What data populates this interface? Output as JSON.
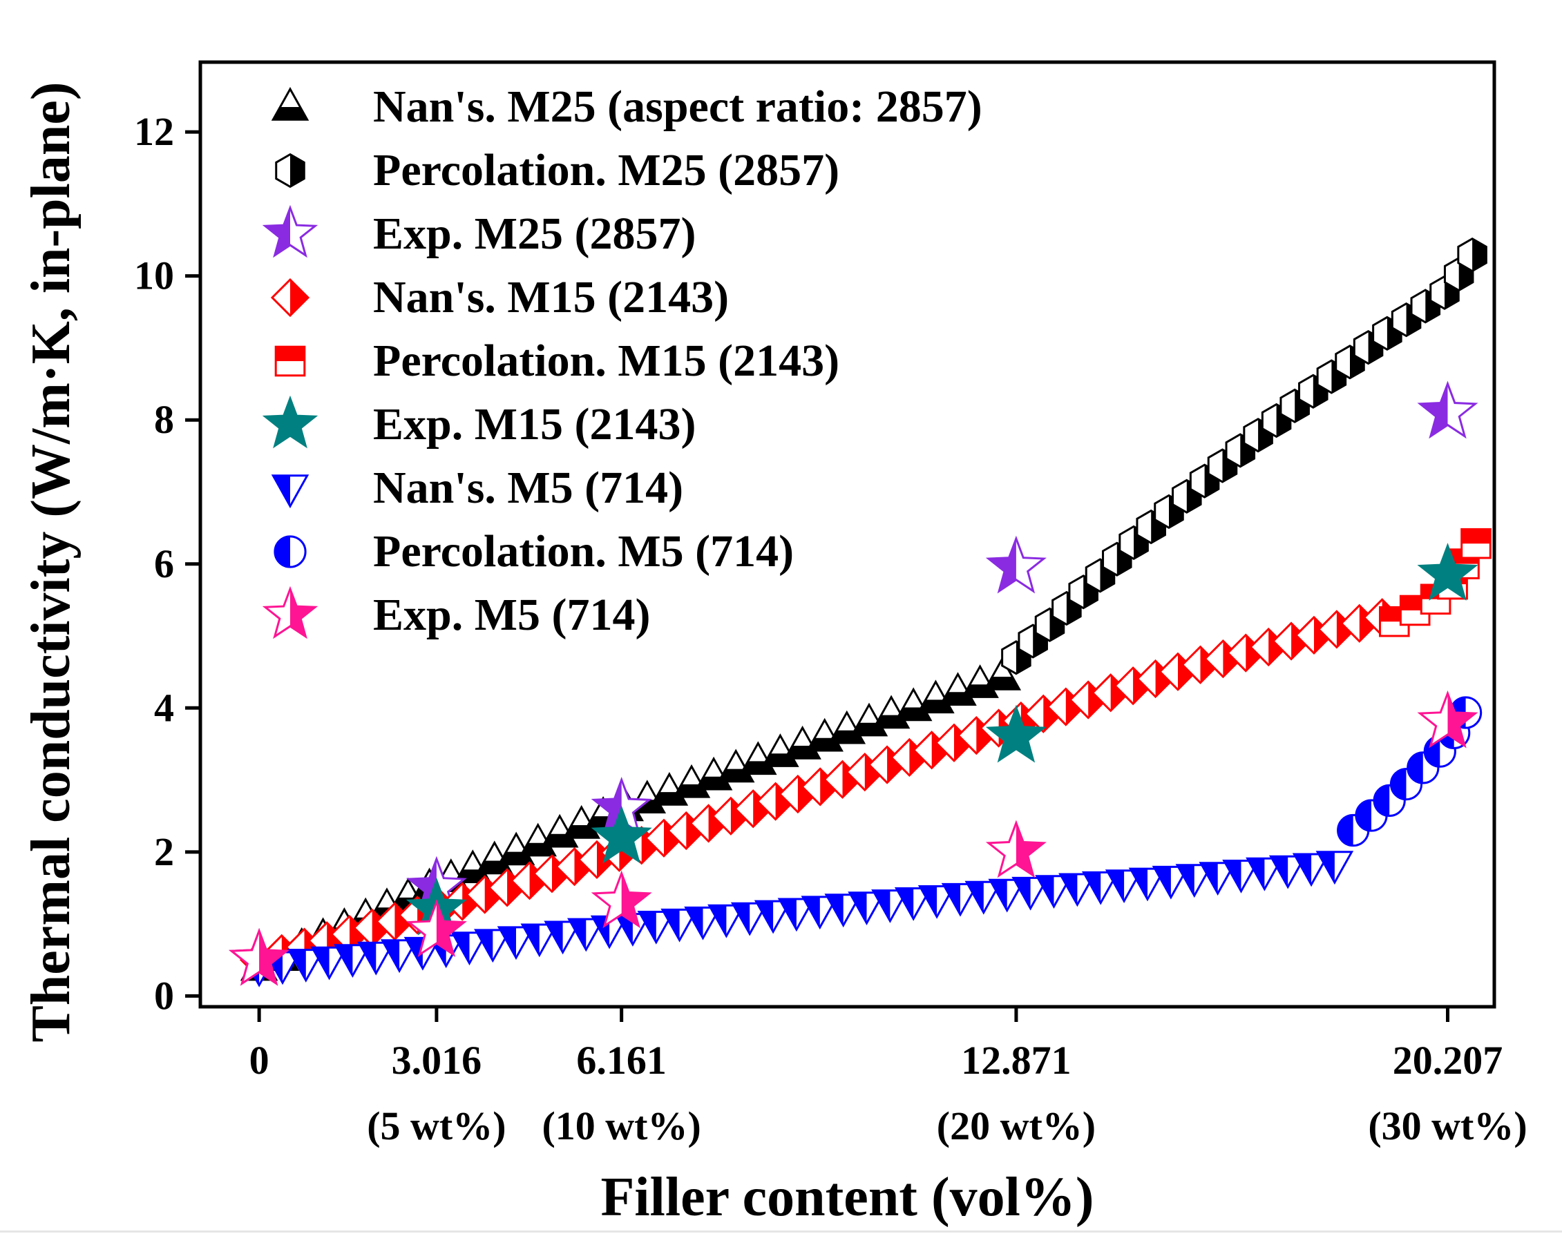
{
  "chart_data": {
    "type": "scatter",
    "xlabel": "Filler content (vol%)",
    "ylabel": "Thermal conductivity (W/m·K, in-plane)",
    "xlim": [
      -1.0,
      21.0
    ],
    "ylim": [
      -0.15,
      12.97
    ],
    "yticks": [
      "0",
      "2",
      "4",
      "6",
      "8",
      "10",
      "12"
    ],
    "xticks": [
      {
        "value": 0,
        "label": "0",
        "sublabel": ""
      },
      {
        "value": 3.016,
        "label": "3.016",
        "sublabel": "(5 wt%)"
      },
      {
        "value": 6.161,
        "label": "6.161",
        "sublabel": "(10 wt%)"
      },
      {
        "value": 12.871,
        "label": "12.871",
        "sublabel": "(20 wt%)"
      },
      {
        "value": 20.207,
        "label": "20.207",
        "sublabel": "(30 wt%)"
      }
    ],
    "grid": false,
    "legend_position": "top-left",
    "series": [
      {
        "name": "Nan's. M25 (aspect ratio: 2857)",
        "marker": "triangle-up",
        "color": "#000000",
        "fill": "bottom-half",
        "x": [
          0,
          3.016,
          6.161,
          9.5,
          12.871
        ],
        "y": [
          0.4,
          1.55,
          2.6,
          3.55,
          4.5
        ]
      },
      {
        "name": "Percolation. M25 (2857)",
        "marker": "hexagon",
        "color": "#000000",
        "fill": "right-half",
        "x": [
          12.871,
          15.0,
          17.0,
          19.0,
          20.207,
          20.8
        ],
        "y": [
          4.7,
          6.4,
          7.8,
          9.1,
          9.8,
          10.5
        ]
      },
      {
        "name": "Exp. M25 (2857)",
        "marker": "star",
        "color": "#8a2be2",
        "fill": "left-half",
        "x": [
          0,
          3.016,
          6.161,
          12.871,
          20.207
        ],
        "y": [
          0.5,
          1.5,
          2.6,
          5.95,
          8.1
        ]
      },
      {
        "name": "Nan's. M15 (2143)",
        "marker": "diamond",
        "color": "#ff0000",
        "fill": "right-half",
        "x": [
          0,
          3.016,
          6.161,
          12.871,
          16.0,
          19.3
        ],
        "y": [
          0.5,
          1.2,
          2.0,
          3.8,
          4.6,
          5.3
        ]
      },
      {
        "name": "Percolation. M15 (2143)",
        "marker": "square",
        "color": "#ff0000",
        "fill": "top-half",
        "x": [
          19.3,
          20.207,
          20.7
        ],
        "y": [
          5.2,
          5.6,
          6.3
        ]
      },
      {
        "name": "Exp. M15 (2143)",
        "marker": "star",
        "color": "#008080",
        "fill": "full",
        "x": [
          3.016,
          6.161,
          12.871,
          20.207
        ],
        "y": [
          1.2,
          2.2,
          3.6,
          5.85
        ]
      },
      {
        "name": "Nan's. M5 (714)",
        "marker": "triangle-down",
        "color": "#0000ff",
        "fill": "left-half",
        "x": [
          0,
          3.016,
          6.161,
          12.871,
          16.0,
          18.6
        ],
        "y": [
          0.4,
          0.65,
          0.95,
          1.45,
          1.65,
          1.85
        ]
      },
      {
        "name": "Percolation. M5 (714)",
        "marker": "circle",
        "color": "#0000ff",
        "fill": "left-half",
        "x": [
          18.6,
          19.2,
          19.7,
          20.207,
          20.7
        ],
        "y": [
          2.3,
          2.7,
          3.1,
          3.5,
          4.2
        ]
      },
      {
        "name": "Exp. M5 (714)",
        "marker": "star",
        "color": "#ff1493",
        "fill": "right-half",
        "x": [
          0,
          3.016,
          6.161,
          12.871,
          20.207
        ],
        "y": [
          0.5,
          0.9,
          1.3,
          2.0,
          3.8
        ]
      }
    ]
  }
}
